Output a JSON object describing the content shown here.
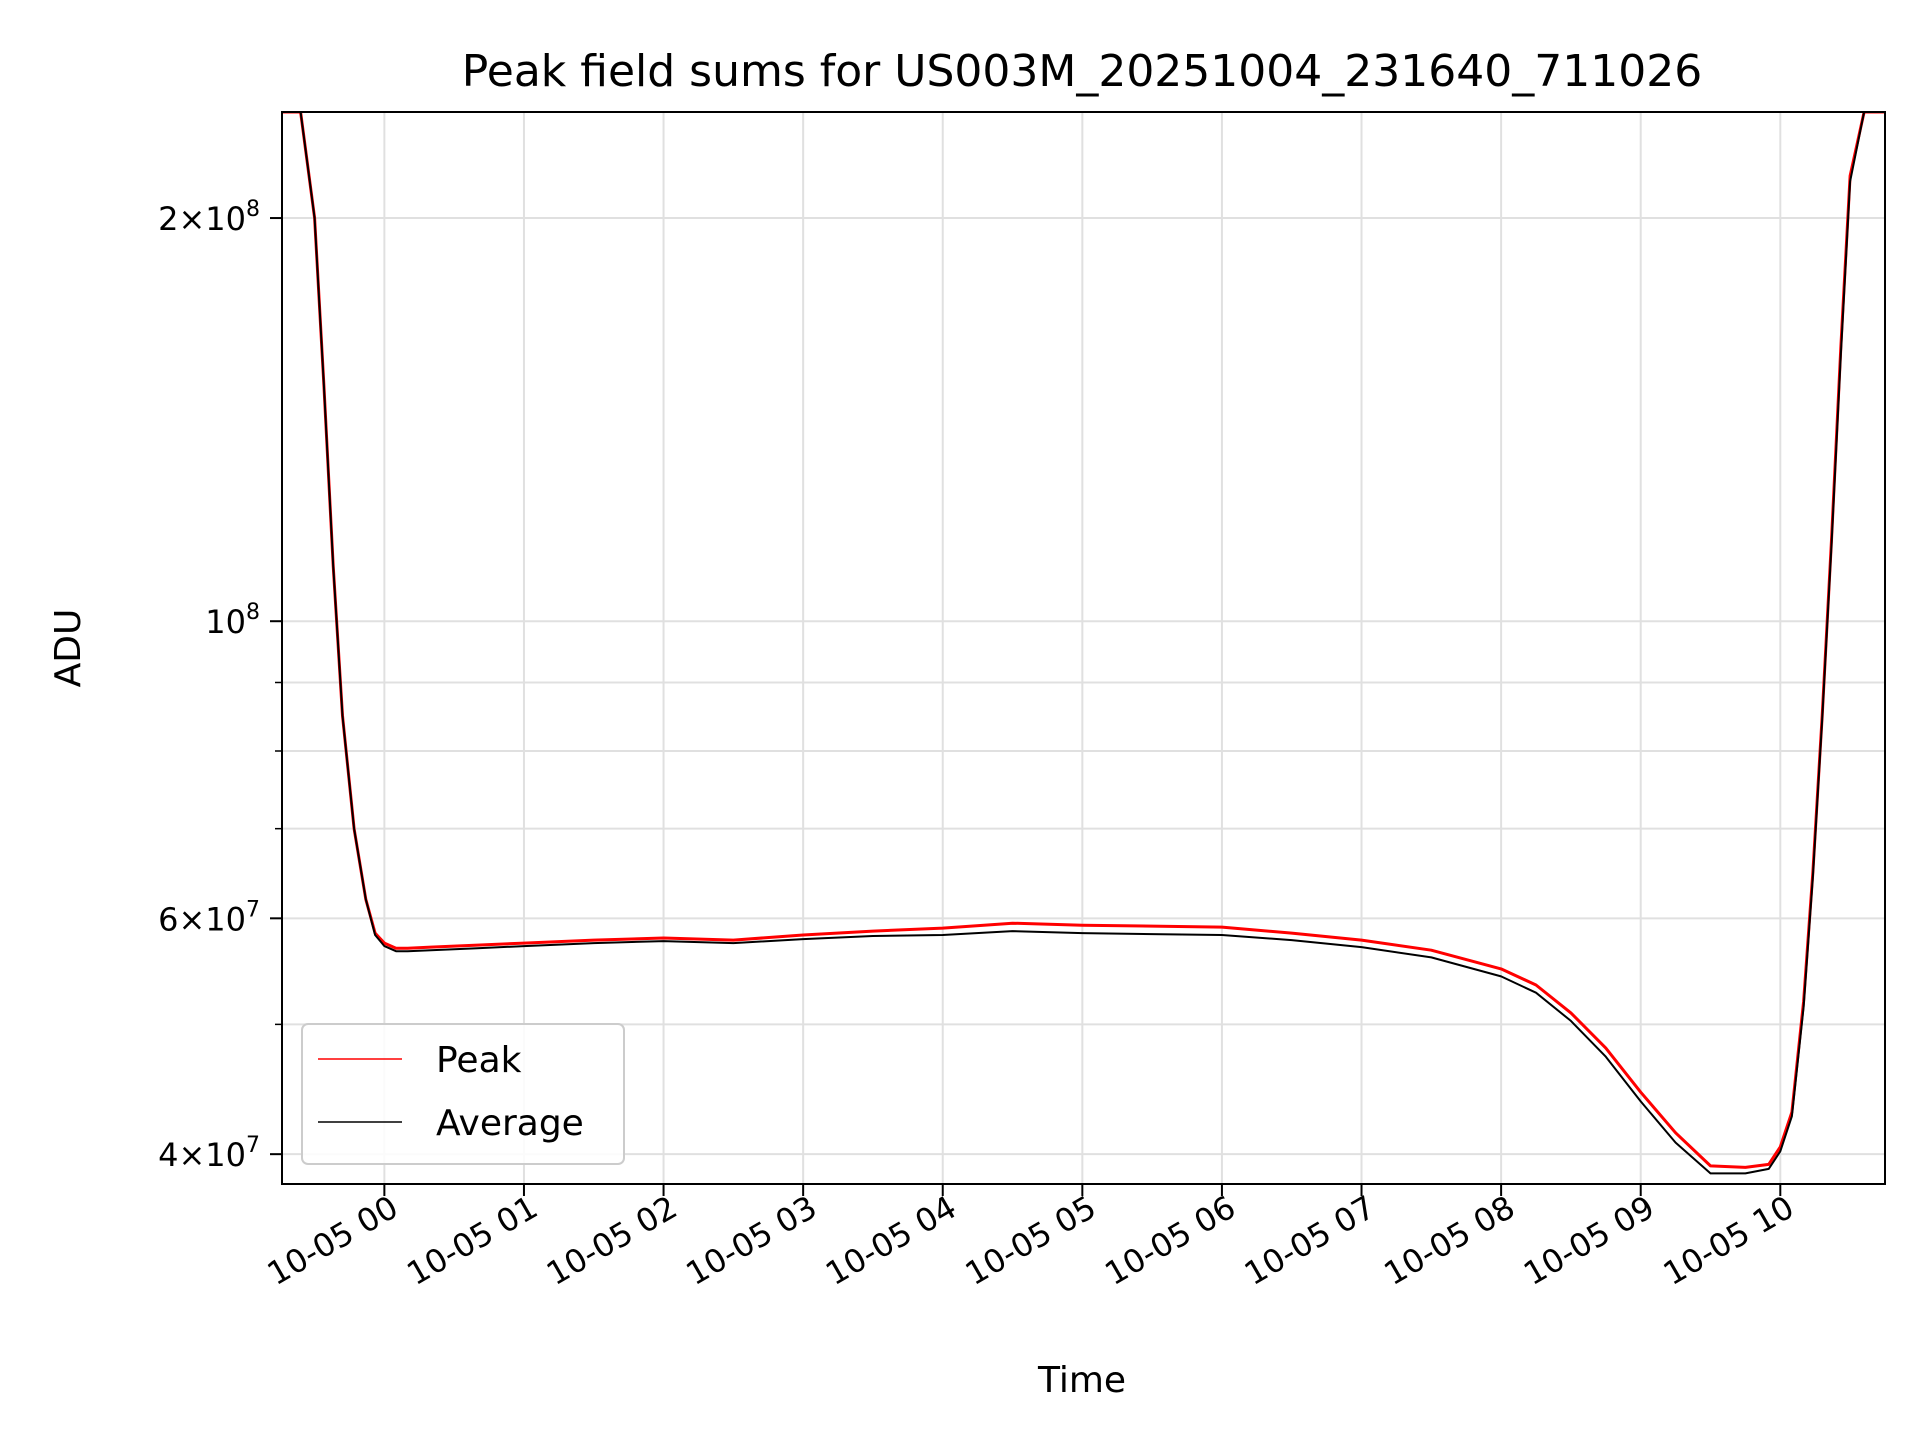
{
  "chart_data": {
    "type": "line",
    "title": "Peak field sums for US003M_20251004_231640_711026",
    "xlabel": "Time",
    "ylabel": "ADU",
    "y_scale": "log",
    "ylim": [
      38000000,
      240000000
    ],
    "xlim": [
      "2025-10-04 23:16",
      "2025-10-05 10:45"
    ],
    "grid": true,
    "legend_position": "lower-left",
    "x_ticks": [
      {
        "label": "10-05 00",
        "value": "2025-10-05 00:00"
      },
      {
        "label": "10-05 01",
        "value": "2025-10-05 01:00"
      },
      {
        "label": "10-05 02",
        "value": "2025-10-05 02:00"
      },
      {
        "label": "10-05 03",
        "value": "2025-10-05 03:00"
      },
      {
        "label": "10-05 04",
        "value": "2025-10-05 04:00"
      },
      {
        "label": "10-05 05",
        "value": "2025-10-05 05:00"
      },
      {
        "label": "10-05 06",
        "value": "2025-10-05 06:00"
      },
      {
        "label": "10-05 07",
        "value": "2025-10-05 07:00"
      },
      {
        "label": "10-05 08",
        "value": "2025-10-05 08:00"
      },
      {
        "label": "10-05 09",
        "value": "2025-10-05 09:00"
      },
      {
        "label": "10-05 10",
        "value": "2025-10-05 10:00"
      }
    ],
    "y_ticks": [
      {
        "value": 40000000,
        "mantissa": "4",
        "exponent": "7"
      },
      {
        "value": 60000000,
        "mantissa": "6",
        "exponent": "7"
      },
      {
        "value": 100000000,
        "mantissa": "",
        "exponent": "8"
      },
      {
        "value": 200000000,
        "mantissa": "2",
        "exponent": "8"
      }
    ],
    "y_minor_ticks": [
      50000000,
      70000000,
      80000000,
      90000000
    ],
    "series": [
      {
        "name": "Peak",
        "color": "#ff0000",
        "x": [
          "2025-10-04 23:16",
          "2025-10-04 23:24",
          "2025-10-04 23:30",
          "2025-10-04 23:34",
          "2025-10-04 23:38",
          "2025-10-04 23:42",
          "2025-10-04 23:47",
          "2025-10-04 23:52",
          "2025-10-04 23:56",
          "2025-10-05 00:00",
          "2025-10-05 00:05",
          "2025-10-05 00:10",
          "2025-10-05 00:20",
          "2025-10-05 00:40",
          "2025-10-05 01:00",
          "2025-10-05 01:30",
          "2025-10-05 02:00",
          "2025-10-05 02:30",
          "2025-10-05 03:00",
          "2025-10-05 03:30",
          "2025-10-05 04:00",
          "2025-10-05 04:30",
          "2025-10-05 05:00",
          "2025-10-05 05:30",
          "2025-10-05 06:00",
          "2025-10-05 06:30",
          "2025-10-05 07:00",
          "2025-10-05 07:30",
          "2025-10-05 08:00",
          "2025-10-05 08:15",
          "2025-10-05 08:30",
          "2025-10-05 08:45",
          "2025-10-05 09:00",
          "2025-10-05 09:15",
          "2025-10-05 09:30",
          "2025-10-05 09:45",
          "2025-10-05 09:55",
          "2025-10-05 10:00",
          "2025-10-05 10:05",
          "2025-10-05 10:10",
          "2025-10-05 10:14",
          "2025-10-05 10:18",
          "2025-10-05 10:22",
          "2025-10-05 10:26",
          "2025-10-05 10:30",
          "2025-10-05 10:36",
          "2025-10-05 10:45"
        ],
        "y": [
          240000000,
          240000000,
          200000000,
          150000000,
          110000000,
          85000000,
          70000000,
          62000000,
          58500000,
          57500000,
          57000000,
          57000000,
          57100000,
          57300000,
          57500000,
          57800000,
          58000000,
          57800000,
          58300000,
          58700000,
          59000000,
          59500000,
          59300000,
          59200000,
          59100000,
          58500000,
          57800000,
          56800000,
          55000000,
          53500000,
          51000000,
          48000000,
          44500000,
          41500000,
          39200000,
          39100000,
          39300000,
          40500000,
          43000000,
          52000000,
          65000000,
          85000000,
          115000000,
          160000000,
          215000000,
          240000000,
          240000000
        ]
      },
      {
        "name": "Average",
        "color": "#000000",
        "x": [
          "2025-10-04 23:16",
          "2025-10-04 23:24",
          "2025-10-04 23:30",
          "2025-10-04 23:34",
          "2025-10-04 23:38",
          "2025-10-04 23:42",
          "2025-10-04 23:47",
          "2025-10-04 23:52",
          "2025-10-04 23:56",
          "2025-10-05 00:00",
          "2025-10-05 00:05",
          "2025-10-05 00:10",
          "2025-10-05 00:20",
          "2025-10-05 00:40",
          "2025-10-05 01:00",
          "2025-10-05 01:30",
          "2025-10-05 02:00",
          "2025-10-05 02:30",
          "2025-10-05 03:00",
          "2025-10-05 03:30",
          "2025-10-05 04:00",
          "2025-10-05 04:30",
          "2025-10-05 05:00",
          "2025-10-05 05:30",
          "2025-10-05 06:00",
          "2025-10-05 06:30",
          "2025-10-05 07:00",
          "2025-10-05 07:30",
          "2025-10-05 08:00",
          "2025-10-05 08:15",
          "2025-10-05 08:30",
          "2025-10-05 08:45",
          "2025-10-05 09:00",
          "2025-10-05 09:15",
          "2025-10-05 09:30",
          "2025-10-05 09:45",
          "2025-10-05 09:55",
          "2025-10-05 10:00",
          "2025-10-05 10:05",
          "2025-10-05 10:10",
          "2025-10-05 10:14",
          "2025-10-05 10:18",
          "2025-10-05 10:22",
          "2025-10-05 10:26",
          "2025-10-05 10:30",
          "2025-10-05 10:36",
          "2025-10-05 10:45"
        ],
        "y": [
          240000000,
          240000000,
          200000000,
          150000000,
          110000000,
          85000000,
          70000000,
          62000000,
          58300000,
          57200000,
          56700000,
          56700000,
          56800000,
          57000000,
          57200000,
          57500000,
          57700000,
          57500000,
          57900000,
          58200000,
          58300000,
          58700000,
          58500000,
          58400000,
          58300000,
          57800000,
          57100000,
          56100000,
          54300000,
          52800000,
          50300000,
          47300000,
          43800000,
          40800000,
          38700000,
          38700000,
          39000000,
          40200000,
          42700000,
          51500000,
          64500000,
          84500000,
          114000000,
          158000000,
          213000000,
          240000000,
          240000000
        ]
      }
    ]
  }
}
